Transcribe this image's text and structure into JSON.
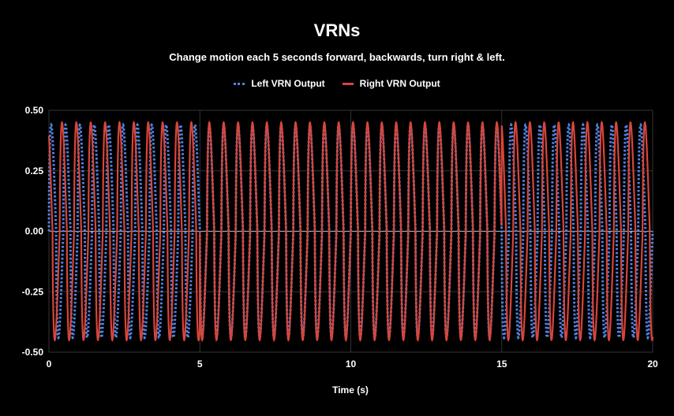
{
  "chart_data": {
    "type": "line",
    "title": "VRNs",
    "subtitle": "Change motion each 5 seconds forward, backwards, turn right & left.",
    "xlabel": "Time (s)",
    "ylabel": "",
    "xlim": [
      0,
      20
    ],
    "ylim": [
      -0.5,
      0.5
    ],
    "x_ticks": [
      "0",
      "5",
      "10",
      "15",
      "20"
    ],
    "y_ticks": [
      "0.50",
      "0.25",
      "0.00",
      "-0.25",
      "-0.50"
    ],
    "grid": true,
    "legend_position": "top",
    "series": [
      {
        "name": "Left VRN Output",
        "color": "#4d86e8",
        "style": "dotted",
        "amplitude": 0.44,
        "frequency_hz": 2.1
      },
      {
        "name": "Right VRN Output",
        "color": "#d6463a",
        "style": "solid",
        "amplitude": 0.45,
        "frequency_hz": 2.1
      }
    ],
    "segments": [
      {
        "t_start": 0,
        "t_end": 5,
        "motion": "forward"
      },
      {
        "t_start": 5,
        "t_end": 10,
        "motion": "backwards"
      },
      {
        "t_start": 10,
        "t_end": 15,
        "motion": "turn right"
      },
      {
        "t_start": 15,
        "t_end": 20,
        "motion": "turn left"
      }
    ]
  }
}
